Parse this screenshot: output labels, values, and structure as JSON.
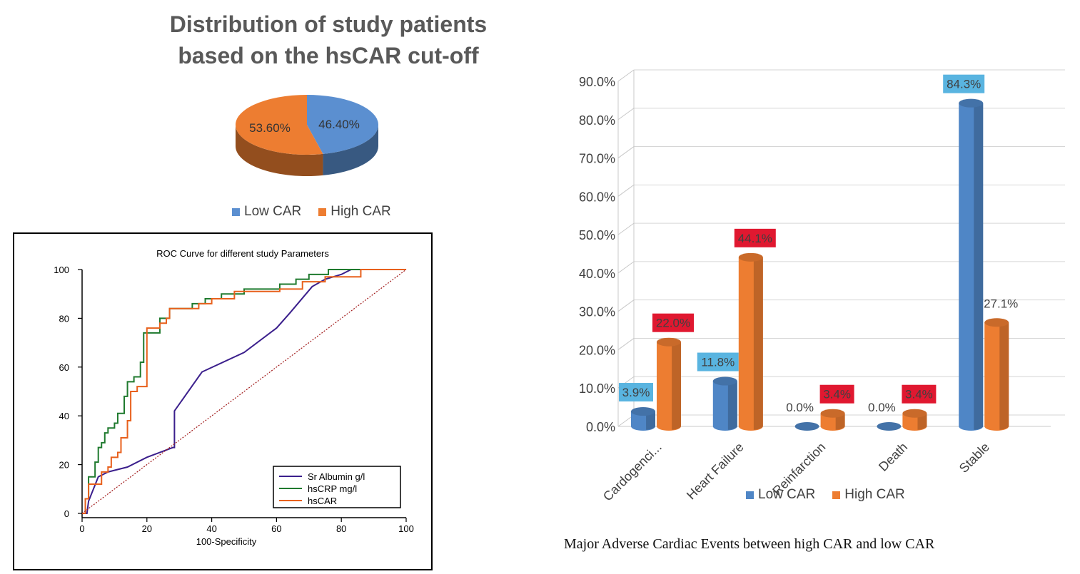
{
  "pie_chart": {
    "title_line1": "Distribution of study patients",
    "title_line2": "based on the hsCAR cut-off",
    "legend": [
      {
        "label": "Low CAR",
        "color": "#5b8fd0"
      },
      {
        "label": "High CAR",
        "color": "#ed7d31"
      }
    ]
  },
  "roc_chart": {
    "title": "ROC Curve for different study Parameters",
    "xlabel": "100-Specificity",
    "legend": [
      {
        "label": "Sr Albumin g/l",
        "color": "#3b1f8c"
      },
      {
        "label": "hsCRP mg/l",
        "color": "#1f7a2e"
      },
      {
        "label": "hsCAR",
        "color": "#e8601c"
      }
    ]
  },
  "bar_chart": {
    "legend": [
      {
        "label": "Low CAR",
        "color": "#4f86c6"
      },
      {
        "label": "High CAR",
        "color": "#ed7d31"
      }
    ]
  },
  "caption": "Major Adverse Cardiac Events between high CAR and low CAR",
  "chart_data": [
    {
      "type": "pie",
      "title": "Distribution of study patients based on the hsCAR cut-off",
      "categories": [
        "Low CAR",
        "High CAR"
      ],
      "values": [
        46.4,
        53.6
      ],
      "labels": [
        "46.40%",
        "53.60%"
      ],
      "colors": [
        "#5b8fd0",
        "#ed7d31"
      ],
      "legend_position": "bottom"
    },
    {
      "type": "line",
      "title": "ROC Curve for different study Parameters",
      "xlabel": "100-Specificity",
      "ylabel": "",
      "xlim": [
        0,
        100
      ],
      "ylim": [
        0,
        100
      ],
      "xticks": [
        0,
        20,
        40,
        60,
        80,
        100
      ],
      "yticks": [
        0,
        20,
        40,
        60,
        80,
        100
      ],
      "legend_position": "bottom-right",
      "series": [
        {
          "name": "Sr Albumin g/l",
          "color": "#3b1f8c",
          "step": false,
          "points": [
            [
              0,
              0
            ],
            [
              1.5,
              0
            ],
            [
              2,
              5
            ],
            [
              5,
              15
            ],
            [
              8,
              17
            ],
            [
              14,
              19
            ],
            [
              20,
              23
            ],
            [
              28,
              27
            ],
            [
              28.5,
              27
            ],
            [
              28.5,
              42
            ],
            [
              37,
              58
            ],
            [
              50,
              66
            ],
            [
              60,
              76
            ],
            [
              64,
              82
            ],
            [
              71,
              93
            ],
            [
              75,
              96
            ],
            [
              80,
              98
            ],
            [
              83,
              100
            ],
            [
              100,
              100
            ]
          ]
        },
        {
          "name": "hsCRP mg/l",
          "color": "#1f7a2e",
          "step": true,
          "points": [
            [
              0,
              0
            ],
            [
              1,
              0
            ],
            [
              1,
              6
            ],
            [
              2,
              6
            ],
            [
              2,
              15
            ],
            [
              4,
              15
            ],
            [
              4,
              21
            ],
            [
              5,
              21
            ],
            [
              5,
              27
            ],
            [
              6,
              27
            ],
            [
              6,
              29
            ],
            [
              7,
              29
            ],
            [
              7,
              33
            ],
            [
              8,
              33
            ],
            [
              8,
              35
            ],
            [
              10,
              35
            ],
            [
              10,
              37
            ],
            [
              11,
              37
            ],
            [
              11,
              41
            ],
            [
              13,
              41
            ],
            [
              13,
              48
            ],
            [
              14,
              48
            ],
            [
              14,
              54
            ],
            [
              16,
              54
            ],
            [
              16,
              56
            ],
            [
              18,
              56
            ],
            [
              18,
              62
            ],
            [
              19,
              62
            ],
            [
              19,
              74
            ],
            [
              24,
              74
            ],
            [
              24,
              80
            ],
            [
              27,
              80
            ],
            [
              27,
              84
            ],
            [
              34,
              84
            ],
            [
              34,
              86
            ],
            [
              38,
              86
            ],
            [
              38,
              88
            ],
            [
              43,
              88
            ],
            [
              43,
              90
            ],
            [
              50,
              90
            ],
            [
              50,
              92
            ],
            [
              61,
              92
            ],
            [
              61,
              94
            ],
            [
              66,
              94
            ],
            [
              66,
              96
            ],
            [
              70,
              96
            ],
            [
              70,
              98
            ],
            [
              76,
              98
            ],
            [
              76,
              100
            ],
            [
              100,
              100
            ]
          ]
        },
        {
          "name": "hsCAR",
          "color": "#e8601c",
          "step": true,
          "points": [
            [
              0,
              0
            ],
            [
              1,
              0
            ],
            [
              1,
              6
            ],
            [
              2,
              6
            ],
            [
              2,
              12
            ],
            [
              6,
              12
            ],
            [
              6,
              17
            ],
            [
              8,
              17
            ],
            [
              8,
              19
            ],
            [
              9,
              19
            ],
            [
              9,
              23
            ],
            [
              11,
              23
            ],
            [
              11,
              25
            ],
            [
              12,
              25
            ],
            [
              12,
              31
            ],
            [
              14,
              31
            ],
            [
              14,
              38
            ],
            [
              15,
              38
            ],
            [
              15,
              50
            ],
            [
              17,
              50
            ],
            [
              17,
              52
            ],
            [
              20,
              52
            ],
            [
              20,
              76
            ],
            [
              24,
              76
            ],
            [
              24,
              78
            ],
            [
              26,
              78
            ],
            [
              26,
              80
            ],
            [
              27,
              80
            ],
            [
              27,
              84
            ],
            [
              36,
              84
            ],
            [
              36,
              86
            ],
            [
              40,
              86
            ],
            [
              40,
              88
            ],
            [
              47,
              88
            ],
            [
              47,
              91
            ],
            [
              61,
              91
            ],
            [
              61,
              92
            ],
            [
              68,
              92
            ],
            [
              68,
              95
            ],
            [
              75,
              95
            ],
            [
              75,
              97
            ],
            [
              86,
              97
            ],
            [
              86,
              100
            ],
            [
              100,
              100
            ]
          ]
        },
        {
          "name": "",
          "color": "#a01818",
          "dashed": true,
          "points": [
            [
              0,
              0
            ],
            [
              100,
              100
            ]
          ]
        }
      ]
    },
    {
      "type": "bar",
      "title": "Major Adverse Cardiac Events between high CAR and low CAR",
      "categories": [
        "Cardogenci...",
        "Heart Failure",
        "Reinfarction",
        "Death",
        "Stable"
      ],
      "ylim": [
        0,
        90
      ],
      "yticks": [
        "0.0%",
        "10.0%",
        "20.0%",
        "30.0%",
        "40.0%",
        "50.0%",
        "60.0%",
        "70.0%",
        "80.0%",
        "90.0%"
      ],
      "legend_position": "bottom",
      "series": [
        {
          "name": "Low CAR",
          "color": "#4f86c6",
          "values": [
            3.9,
            11.8,
            0.0,
            0.0,
            84.3
          ],
          "labels": [
            "3.9%",
            "11.8%",
            "0.0%",
            "0.0%",
            "84.3%"
          ],
          "label_bg": [
            "#59b4e0",
            "#59b4e0",
            "",
            "",
            "#59b4e0"
          ]
        },
        {
          "name": "High CAR",
          "color": "#ed7d31",
          "values": [
            22.0,
            44.1,
            3.4,
            3.4,
            27.1
          ],
          "labels": [
            "22.0%",
            "44.1%",
            "3.4%",
            "3.4%",
            "27.1%"
          ],
          "label_bg": [
            "#e01830",
            "#e01830",
            "#e01830",
            "#e01830",
            ""
          ]
        }
      ]
    }
  ]
}
